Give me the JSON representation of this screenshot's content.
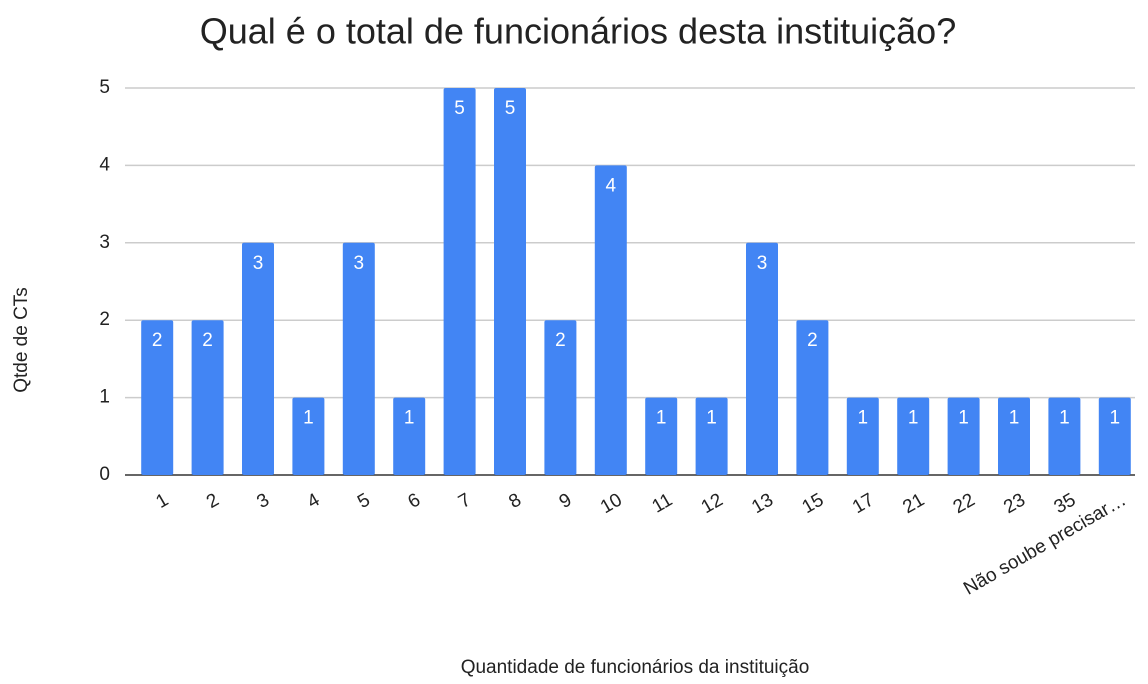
{
  "chart_data": {
    "type": "bar",
    "title": "Qual é o total de funcionários desta instituição?",
    "x_label": "Quantidade de funcionários da instituição",
    "y_label": "Qtde de CTs",
    "categories": [
      "1",
      "2",
      "3",
      "4",
      "5",
      "6",
      "7",
      "8",
      "9",
      "10",
      "11",
      "12",
      "13",
      "15",
      "17",
      "21",
      "22",
      "23",
      "35",
      "Não soube precisar…"
    ],
    "values": [
      2,
      2,
      3,
      1,
      3,
      1,
      5,
      5,
      2,
      4,
      1,
      1,
      3,
      2,
      1,
      1,
      1,
      1,
      1,
      1
    ],
    "color": "#4285f4",
    "ylim": [
      0,
      5
    ],
    "yticks": [
      0,
      1,
      2,
      3,
      4,
      5
    ],
    "grid": true
  }
}
